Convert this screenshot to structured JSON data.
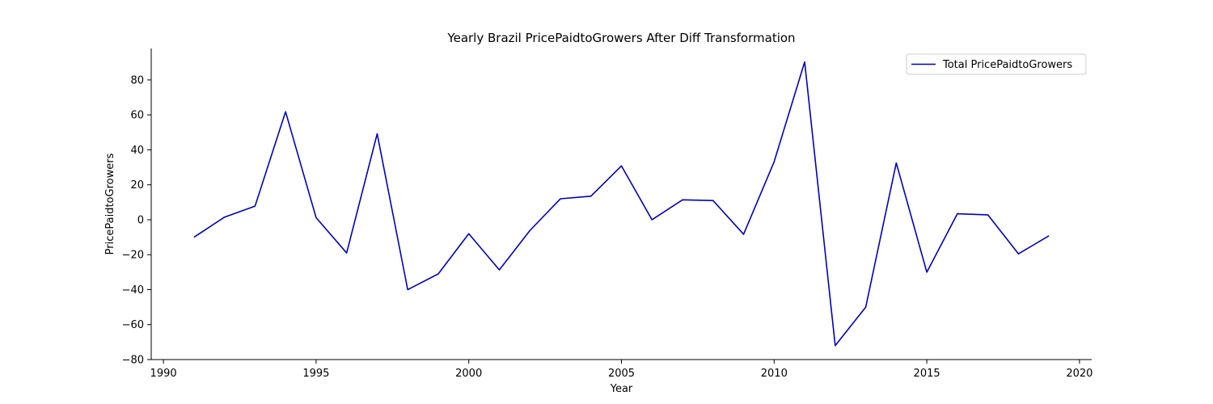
{
  "chart_data": {
    "type": "line",
    "title": "Yearly Brazil PricePaidtoGrowers After Diff Transformation",
    "xlabel": "Year",
    "ylabel": "PricePaidtoGrowers",
    "xlim": [
      1989.6,
      2020.4
    ],
    "ylim": [
      -80,
      98
    ],
    "x_ticks": [
      1990,
      1995,
      2000,
      2005,
      2010,
      2015,
      2020
    ],
    "y_ticks": [
      -80,
      -60,
      -40,
      -20,
      0,
      20,
      40,
      60,
      80
    ],
    "grid": false,
    "legend_position": "top-right",
    "series": [
      {
        "name": "Total PricePaidtoGrowers",
        "color": "#0000c0",
        "x": [
          1991,
          1992,
          1993,
          1994,
          1995,
          1996,
          1997,
          1998,
          1999,
          2000,
          2001,
          2002,
          2003,
          2004,
          2005,
          2006,
          2007,
          2008,
          2009,
          2010,
          2011,
          2012,
          2013,
          2014,
          2015,
          2016,
          2017,
          2018,
          2019
        ],
        "y": [
          -10,
          1.5,
          7.8,
          61.8,
          1.2,
          -19,
          49.2,
          -40,
          -31,
          -8,
          -28.7,
          -6.2,
          12,
          13.5,
          30.8,
          0,
          11.4,
          11,
          -8.3,
          33.2,
          90.3,
          -72,
          -50,
          32.5,
          -30,
          3.4,
          2.8,
          -19.5,
          -9.2
        ]
      }
    ]
  }
}
